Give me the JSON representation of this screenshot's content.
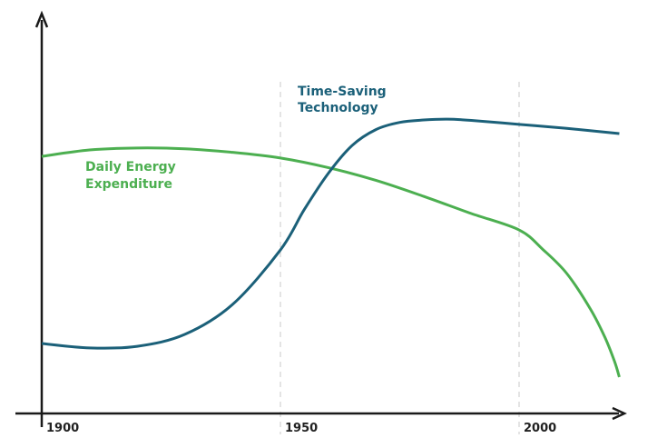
{
  "chart_data": {
    "type": "line",
    "title": "",
    "xlabel": "",
    "ylabel": "",
    "xlim": [
      1900,
      2021
    ],
    "ylim": [
      0,
      100
    ],
    "x_ticks": [
      "1900",
      "1950",
      "2000"
    ],
    "grid": "dashed vertical at 1950 and 2000",
    "legend": "inline labels",
    "series": [
      {
        "name": "Daily Energy Expenditure",
        "color": "#4caf50",
        "label_lines": [
          "Daily Energy",
          "Expenditure"
        ],
        "x": [
          1900,
          1910,
          1920,
          1930,
          1940,
          1950,
          1960,
          1970,
          1980,
          1990,
          2000,
          2005,
          2010,
          2015,
          2018,
          2020,
          2021
        ],
        "y": [
          64.3,
          65.9,
          66.4,
          66.2,
          65.3,
          63.9,
          61.5,
          58.3,
          54.3,
          50.0,
          45.9,
          41.0,
          35.0,
          26.0,
          19.0,
          13.0,
          9.1
        ]
      },
      {
        "name": "Time-Saving Technology",
        "color": "#1b6079",
        "label_lines": [
          "Time-Saving",
          "Technology"
        ],
        "x": [
          1900,
          1910,
          1920,
          1930,
          1940,
          1950,
          1955,
          1960,
          1965,
          1970,
          1975,
          1980,
          1985,
          1990,
          2000,
          2010,
          2021
        ],
        "y": [
          17.5,
          16.4,
          16.8,
          19.8,
          27.3,
          40.9,
          51.0,
          60.0,
          67.0,
          71.0,
          72.8,
          73.4,
          73.6,
          73.3,
          72.3,
          71.3,
          70.0
        ]
      }
    ]
  }
}
